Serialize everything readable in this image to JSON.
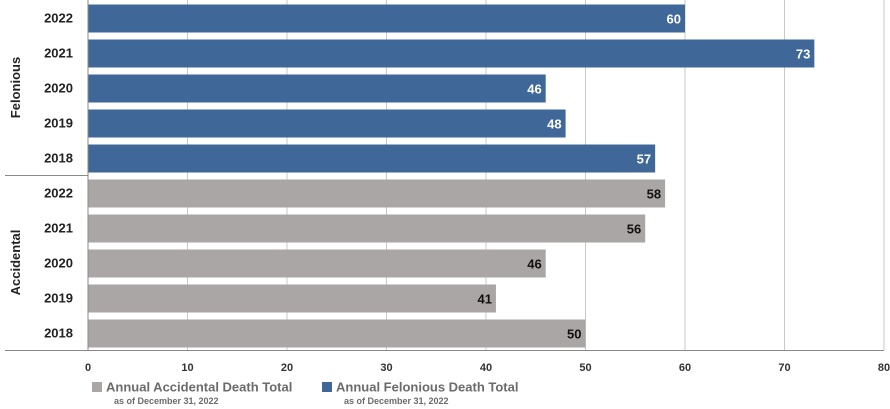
{
  "chart_data": {
    "type": "bar",
    "orientation": "horizontal",
    "title": "",
    "xlabel": "",
    "ylabel": "",
    "xlim": [
      0,
      80
    ],
    "x_ticks": [
      "0",
      "10",
      "20",
      "30",
      "40",
      "50",
      "60",
      "70",
      "80"
    ],
    "grid": true,
    "legend_position": "bottom",
    "groups": [
      {
        "name": "Felonious",
        "series": "Annual Felonious Death Total",
        "categories": [
          "2022",
          "2021",
          "2020",
          "2019",
          "2018"
        ],
        "values": [
          60,
          73,
          46,
          48,
          57
        ],
        "color": "#3f6899",
        "label_color": "#ffffff"
      },
      {
        "name": "Accidental",
        "series": "Annual Accidental Death Total",
        "categories": [
          "2022",
          "2021",
          "2020",
          "2019",
          "2018"
        ],
        "values": [
          58,
          56,
          46,
          41,
          50
        ],
        "color": "#aaa6a6",
        "label_color": "#111111"
      }
    ],
    "legend": [
      {
        "name": "Annual Accidental Death Total",
        "note": "as of December 31, 2022",
        "color": "#aaa6a6"
      },
      {
        "name": "Annual Felonious Death Total",
        "note": "as of December 31, 2022",
        "color": "#3f6899"
      }
    ]
  }
}
